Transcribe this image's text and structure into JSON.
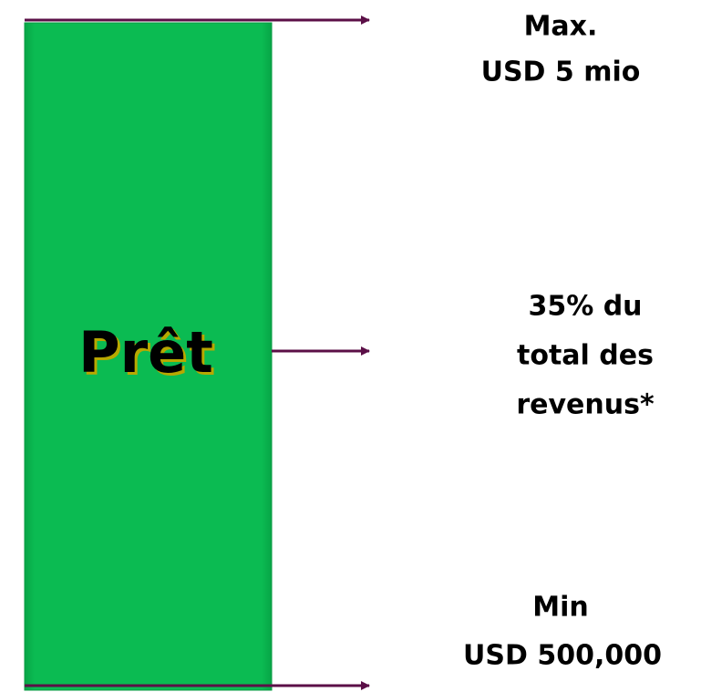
{
  "box": {
    "label": "Prêt"
  },
  "annotations": [
    {
      "lines": [
        "Max.",
        "USD 5 mio"
      ]
    },
    {
      "lines": [
        "35% du",
        "total des",
        "revenus*"
      ]
    },
    {
      "lines": [
        "Min",
        "USD 500,000"
      ]
    }
  ]
}
